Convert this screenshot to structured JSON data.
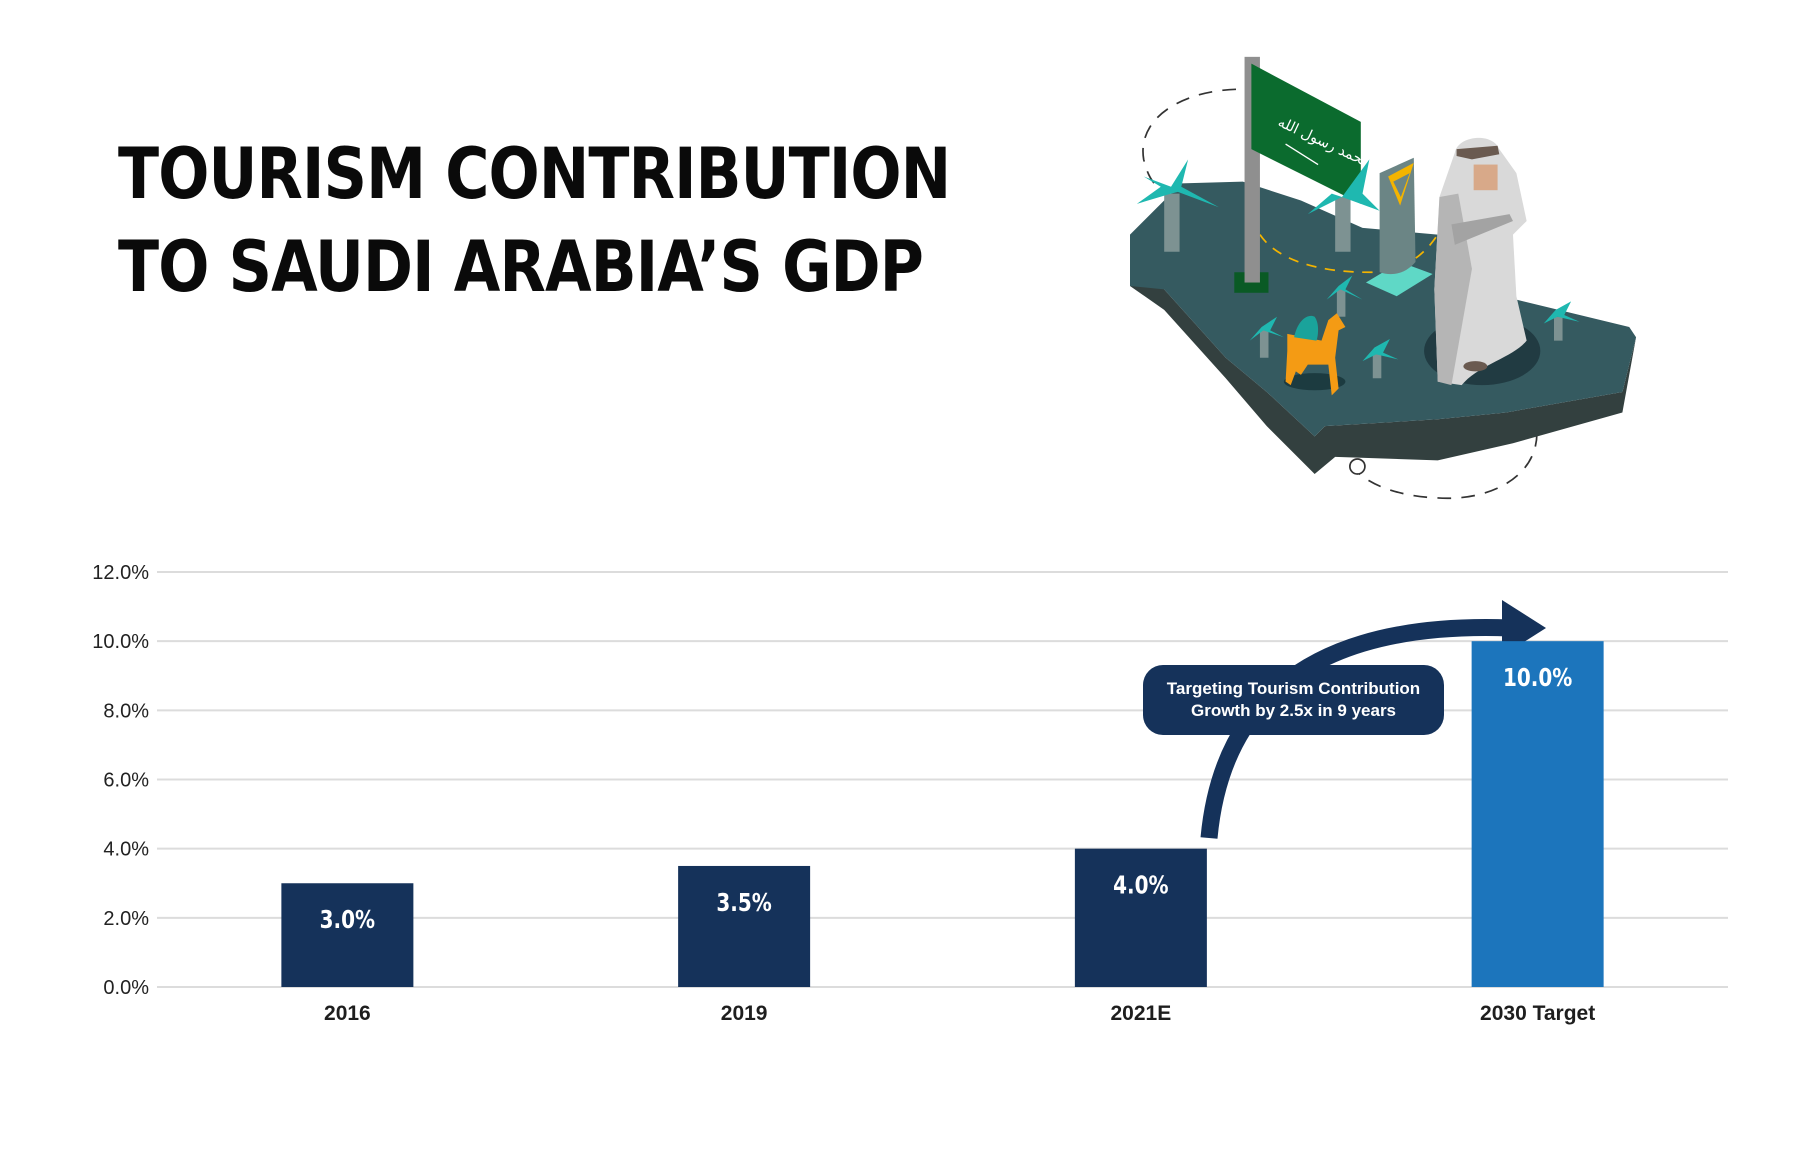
{
  "title": {
    "line1": "TOURISM CONTRIBUTION",
    "line2": "TO SAUDI ARABIA’S GDP"
  },
  "illustration": {
    "flag_text": "لا إله إلا الله محمد رسول الله"
  },
  "annotation": {
    "line1": "Targeting Tourism Contribution",
    "line2": "Growth by 2.5x in 9 years"
  },
  "chart_data": {
    "type": "bar",
    "title": "TOURISM CONTRIBUTION TO SAUDI ARABIA’S GDP",
    "categories": [
      "2016",
      "2019",
      "2021E",
      "2030 Target"
    ],
    "values": [
      3.0,
      3.5,
      4.0,
      10.0
    ],
    "value_labels": [
      "3.0%",
      "3.5%",
      "4.0%",
      "10.0%"
    ],
    "bar_colors": [
      "#15325a",
      "#15325a",
      "#15325a",
      "#1c75bc"
    ],
    "ylim": [
      0,
      12
    ],
    "yticks": [
      "0.0%",
      "2.0%",
      "4.0%",
      "6.0%",
      "8.0%",
      "10.0%",
      "12.0%"
    ],
    "grid": true,
    "xlabel": "",
    "ylabel": ""
  }
}
